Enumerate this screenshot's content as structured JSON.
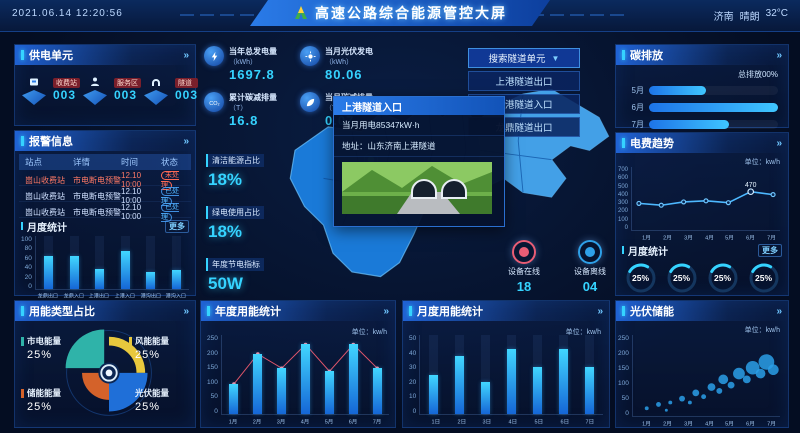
{
  "header": {
    "date": "2021.06.14",
    "time": "12:20:56",
    "title": "高速公路综合能源管控大屏",
    "weather": {
      "city": "济南",
      "condition": "晴朗",
      "temp": "32°C"
    }
  },
  "left": {
    "power_units": {
      "title": "供电单元",
      "arrow": "»",
      "items": [
        {
          "label": "收费站",
          "count": "003",
          "icon": "station-icon"
        },
        {
          "label": "服务区",
          "count": "003",
          "icon": "service-icon"
        },
        {
          "label": "隧道",
          "count": "003",
          "icon": "tunnel-icon"
        }
      ]
    },
    "alarm": {
      "title": "报警信息",
      "arrow": "»",
      "columns": [
        "站点",
        "详情",
        "时间",
        "状态"
      ],
      "rows": [
        {
          "site": "崮山收费站",
          "detail": "市电断电预警",
          "time": "12.10 10:00",
          "status": "未处理",
          "level": "danger"
        },
        {
          "site": "崮山收费站",
          "detail": "市电断电预警",
          "time": "12.10 10:00",
          "status": "已处理",
          "level": "ok"
        },
        {
          "site": "崮山收费站",
          "detail": "市电断电预警",
          "time": "12.10 10:00",
          "status": "已处理",
          "level": "ok"
        }
      ]
    },
    "monthly_stats": {
      "subtitle": "月度统计",
      "more": "更多",
      "yticks": [
        100,
        80,
        60,
        40,
        20,
        0
      ],
      "ymax": 100,
      "categories": [
        "龙鼎出口",
        "龙鼎入口",
        "上港出口",
        "上港入口",
        "港沟出口",
        "港沟入口"
      ],
      "values": [
        62,
        62,
        38,
        72,
        33,
        35
      ]
    },
    "energy_types": {
      "title": "用能类型占比",
      "arrow": "»",
      "slices": [
        {
          "label": "市电能量",
          "value": "25%",
          "color": "#2fb3a9"
        },
        {
          "label": "风能能量",
          "value": "25%",
          "color": "#e8c83d"
        },
        {
          "label": "储能能量",
          "value": "25%",
          "color": "#d4622a"
        },
        {
          "label": "光伏能量",
          "value": "25%",
          "color": "#1f6fd8"
        }
      ]
    }
  },
  "middle": {
    "stats": [
      {
        "label": "当年总发电量",
        "unit": "（kWh）",
        "value": "1697.8",
        "icon": "lightning-icon"
      },
      {
        "label": "当月光伏发电",
        "unit": "（kWh）",
        "value": "80.06",
        "icon": "solar-icon"
      },
      {
        "label": "累计碳减排量",
        "unit": "（T）",
        "value": "16.8",
        "icon": "co2-icon"
      },
      {
        "label": "当月碳减排量",
        "unit": "（T）",
        "value": "0.07",
        "icon": "leaf-icon"
      }
    ],
    "indicators": [
      {
        "label": "清洁能源占比",
        "value": "18%"
      },
      {
        "label": "绿电使用占比",
        "value": "18%"
      },
      {
        "label": "年度节电指标",
        "value": "50W"
      }
    ],
    "search": {
      "placeholder": "搜索隧道单元",
      "options": [
        "上港隧道出口",
        "上港隧道入口",
        "龙鼎隧道出口"
      ]
    },
    "tooltip": {
      "title": "上港隧道入口",
      "usage": "当月用电85347kW·h",
      "address": "地址：山东济南上港隧道"
    },
    "devices": [
      {
        "label": "设备在线",
        "value": "18",
        "color": "#e85d75"
      },
      {
        "label": "设备离线",
        "value": "04",
        "color": "#2ea0e8"
      }
    ]
  },
  "charts": {
    "annual": {
      "title": "年度用能统计",
      "arrow": "»",
      "unit": "单位：kw/h",
      "yticks": [
        250,
        200,
        150,
        100,
        50,
        0
      ],
      "ymax": 250,
      "categories": [
        "1月",
        "2月",
        "3月",
        "4月",
        "5月",
        "6月",
        "7月"
      ],
      "values": [
        95,
        190,
        145,
        220,
        135,
        220,
        145
      ]
    },
    "monthly": {
      "title": "月度用能统计",
      "arrow": "»",
      "unit": "单位：kw/h",
      "yticks": [
        50,
        40,
        30,
        20,
        10,
        0
      ],
      "ymax": 55,
      "categories": [
        "1日",
        "2日",
        "3日",
        "4日",
        "5日",
        "6日",
        "7日"
      ],
      "values": [
        27,
        40,
        22,
        45,
        33,
        45,
        33
      ]
    },
    "carbon": {
      "title": "碳排放",
      "arrow": "»",
      "total": "总排放00%",
      "rows": [
        {
          "label": "5月",
          "pct": 44
        },
        {
          "label": "6月",
          "pct": 100
        },
        {
          "label": "7月",
          "pct": 62
        }
      ]
    },
    "trend": {
      "title": "电费趋势",
      "arrow": "»",
      "unit": "单位：kw/h",
      "yticks": [
        700,
        600,
        500,
        400,
        300,
        200,
        100,
        0
      ],
      "ymax": 700,
      "categories": [
        "1月",
        "2月",
        "3月",
        "4月",
        "5月",
        "6月",
        "7月"
      ],
      "values": [
        310,
        285,
        330,
        345,
        320,
        470,
        430
      ],
      "peak_label": "470",
      "peak_index": 5
    },
    "gauges": {
      "subtitle": "月度统计",
      "more": "更多",
      "values": [
        "25%",
        "25%",
        "25%",
        "25%"
      ]
    },
    "pv": {
      "title": "光伏储能",
      "arrow": "»",
      "unit": "单位：kw/h",
      "yticks": [
        250,
        200,
        150,
        100,
        50,
        0
      ],
      "categories": [
        "1月",
        "2月",
        "3月",
        "4月",
        "5月",
        "6月",
        "7月"
      ],
      "bubbles": [
        {
          "x": 14,
          "y": 76,
          "r": 2
        },
        {
          "x": 26,
          "y": 72,
          "r": 2.5
        },
        {
          "x": 38,
          "y": 70,
          "r": 2
        },
        {
          "x": 34,
          "y": 78,
          "r": 1.5
        },
        {
          "x": 50,
          "y": 66,
          "r": 3
        },
        {
          "x": 58,
          "y": 70,
          "r": 2
        },
        {
          "x": 64,
          "y": 60,
          "r": 3.5
        },
        {
          "x": 72,
          "y": 64,
          "r": 2.5
        },
        {
          "x": 80,
          "y": 54,
          "r": 4
        },
        {
          "x": 88,
          "y": 58,
          "r": 3
        },
        {
          "x": 92,
          "y": 46,
          "r": 5
        },
        {
          "x": 100,
          "y": 52,
          "r": 3.5
        },
        {
          "x": 108,
          "y": 40,
          "r": 6
        },
        {
          "x": 116,
          "y": 46,
          "r": 4
        },
        {
          "x": 122,
          "y": 34,
          "r": 7
        },
        {
          "x": 130,
          "y": 40,
          "r": 5
        },
        {
          "x": 136,
          "y": 28,
          "r": 8
        },
        {
          "x": 143,
          "y": 36,
          "r": 5.5
        }
      ]
    }
  }
}
